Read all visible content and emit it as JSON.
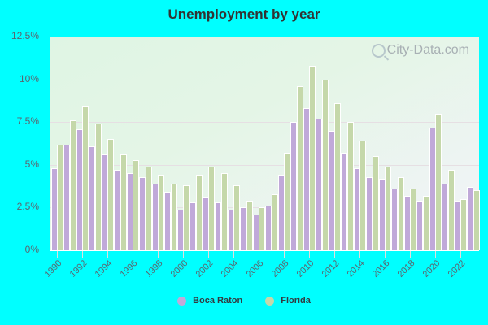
{
  "chart_data": {
    "type": "bar",
    "title": "Unemployment by year",
    "xlabel": "",
    "ylabel": "",
    "ylim": [
      0,
      12.5
    ],
    "yticks": [
      "0%",
      "2.5%",
      "5%",
      "7.5%",
      "10%",
      "12.5%"
    ],
    "grid": true,
    "legend_position": "bottom",
    "categories": [
      "1990",
      "1991",
      "1992",
      "1993",
      "1994",
      "1995",
      "1996",
      "1997",
      "1998",
      "1999",
      "2000",
      "2001",
      "2002",
      "2003",
      "2004",
      "2005",
      "2006",
      "2007",
      "2008",
      "2009",
      "2010",
      "2011",
      "2012",
      "2013",
      "2014",
      "2015",
      "2016",
      "2017",
      "2018",
      "2019",
      "2020",
      "2021",
      "2022",
      "2023"
    ],
    "xtick_labels": [
      "1990",
      "1992",
      "1994",
      "1996",
      "1998",
      "2000",
      "2002",
      "2004",
      "2006",
      "2008",
      "2010",
      "2012",
      "2014",
      "2016",
      "2018",
      "2020",
      "2022"
    ],
    "series": [
      {
        "name": "Boca Raton",
        "color": "#c0a9d9",
        "values": [
          4.8,
          6.2,
          7.1,
          6.1,
          5.6,
          4.7,
          4.5,
          4.3,
          3.9,
          3.4,
          2.4,
          2.8,
          3.1,
          2.8,
          2.4,
          2.5,
          2.1,
          2.6,
          4.4,
          7.5,
          8.3,
          7.7,
          7.0,
          5.7,
          4.8,
          4.3,
          4.2,
          3.6,
          3.2,
          2.9,
          7.2,
          3.9,
          2.9,
          3.7
        ]
      },
      {
        "name": "Florida",
        "color": "#c5d8aa",
        "values": [
          6.2,
          7.6,
          8.4,
          7.4,
          6.5,
          5.6,
          5.3,
          4.9,
          4.4,
          3.9,
          3.8,
          4.4,
          4.9,
          4.5,
          3.8,
          2.9,
          2.5,
          3.3,
          5.7,
          9.6,
          10.8,
          10.0,
          8.6,
          7.5,
          6.4,
          5.5,
          4.9,
          4.3,
          3.6,
          3.2,
          8.0,
          4.7,
          3.0,
          3.5
        ]
      }
    ]
  },
  "watermark": "City-Data.com",
  "legend": {
    "items": [
      {
        "label": "Boca Raton",
        "color": "#c0a9d9"
      },
      {
        "label": "Florida",
        "color": "#c5d8aa"
      }
    ]
  }
}
